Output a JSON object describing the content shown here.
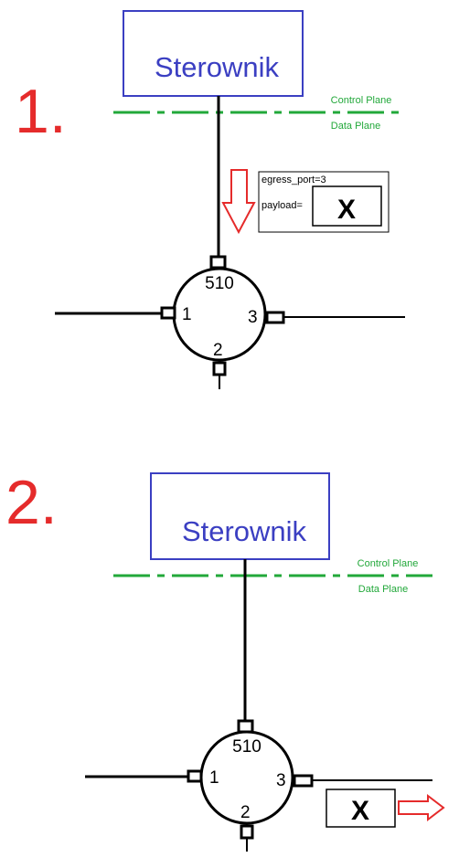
{
  "colors": {
    "step_number": "#e52b2b",
    "controller_border": "#3b3fc2",
    "controller_text": "#3b3fc2",
    "plane_line": "#22a83a",
    "plane_text": "#22a83a",
    "line": "#000000",
    "arrow": "#e52b2b"
  },
  "steps": [
    {
      "number": "1.",
      "controller_label": "Sterownik",
      "control_plane_label": "Control Plane",
      "data_plane_label": "Data Plane",
      "switch": {
        "port_cpu": "510",
        "port_left": "1",
        "port_right": "3",
        "port_bottom": "2"
      },
      "packet": {
        "field_egress": "egress_port=3",
        "field_payload": "payload=",
        "payload_value": "X"
      }
    },
    {
      "number": "2.",
      "controller_label": "Sterownik",
      "control_plane_label": "Control Plane",
      "data_plane_label": "Data Plane",
      "switch": {
        "port_cpu": "510",
        "port_left": "1",
        "port_right": "3",
        "port_bottom": "2"
      },
      "packet": {
        "payload_value": "X"
      }
    }
  ]
}
